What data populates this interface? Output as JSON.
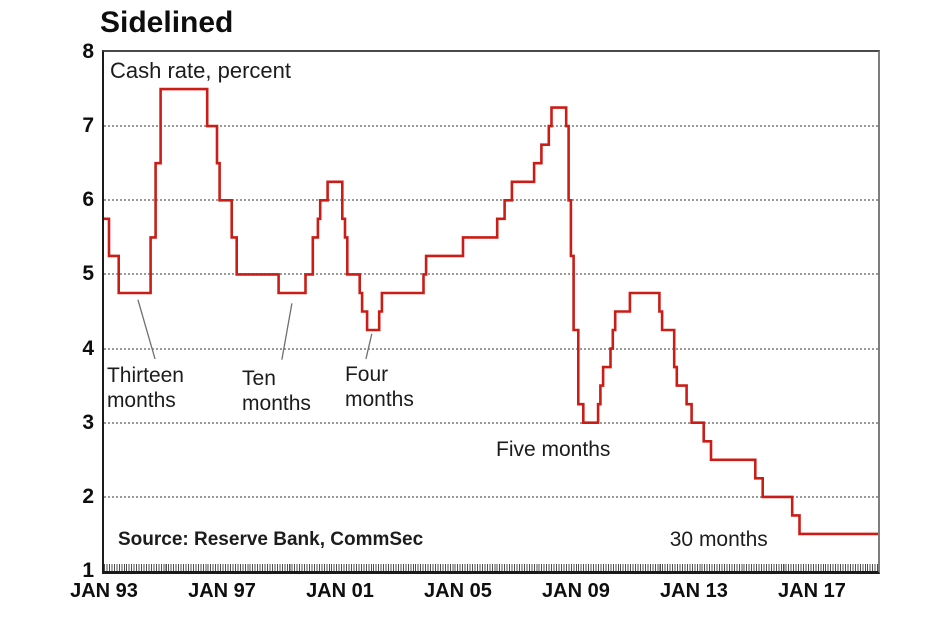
{
  "chart_data": {
    "type": "line",
    "subtype": "step",
    "title": "Sidelined",
    "series_label": "Cash rate, percent",
    "source": "Source: Reserve Bank, CommSec",
    "ylabel": "Cash rate (percent)",
    "xlabel": "",
    "y_range": [
      1,
      8
    ],
    "x_range_years": [
      1993.0,
      2019.24
    ],
    "grid": "horizontal-dotted",
    "legend_position": "none",
    "line_color": "#cb1d17",
    "grid_color": "#9a9a9a",
    "y_ticks": [
      8,
      7,
      6,
      5,
      4,
      3,
      2,
      1
    ],
    "y_gridlines": [
      7,
      6,
      5,
      4,
      3,
      2
    ],
    "x_ticks": [
      {
        "label": "JAN 93",
        "year": 1993
      },
      {
        "label": "JAN 97",
        "year": 1997
      },
      {
        "label": "JAN 01",
        "year": 2001
      },
      {
        "label": "JAN 05",
        "year": 2005
      },
      {
        "label": "JAN 09",
        "year": 2009
      },
      {
        "label": "JAN 13",
        "year": 2013
      },
      {
        "label": "JAN 17",
        "year": 2017
      }
    ],
    "points": [
      {
        "date": "Jan 93",
        "year": 1993.0,
        "rate": 5.75
      },
      {
        "date": "Mar 93",
        "year": 1993.17,
        "rate": 5.25
      },
      {
        "date": "Jul 93",
        "year": 1993.5,
        "rate": 4.75
      },
      {
        "date": "Aug 94",
        "year": 1994.58,
        "rate": 5.5
      },
      {
        "date": "Oct 94",
        "year": 1994.75,
        "rate": 6.5
      },
      {
        "date": "Dec 94",
        "year": 1994.92,
        "rate": 7.5
      },
      {
        "date": "Jul 96",
        "year": 1996.5,
        "rate": 7.0
      },
      {
        "date": "Nov 96",
        "year": 1996.83,
        "rate": 6.5
      },
      {
        "date": "Dec 96",
        "year": 1996.92,
        "rate": 6.0
      },
      {
        "date": "May 97",
        "year": 1997.33,
        "rate": 5.5
      },
      {
        "date": "Jul 97",
        "year": 1997.5,
        "rate": 5.0
      },
      {
        "date": "Dec 98",
        "year": 1998.92,
        "rate": 4.75
      },
      {
        "date": "Nov 99",
        "year": 1999.83,
        "rate": 5.0
      },
      {
        "date": "Feb 00",
        "year": 2000.08,
        "rate": 5.5
      },
      {
        "date": "Apr 00",
        "year": 2000.25,
        "rate": 5.75
      },
      {
        "date": "May 00",
        "year": 2000.33,
        "rate": 6.0
      },
      {
        "date": "Aug 00",
        "year": 2000.58,
        "rate": 6.25
      },
      {
        "date": "Feb 01",
        "year": 2001.08,
        "rate": 5.75
      },
      {
        "date": "Mar 01",
        "year": 2001.17,
        "rate": 5.5
      },
      {
        "date": "Apr 01",
        "year": 2001.25,
        "rate": 5.0
      },
      {
        "date": "Sep 01",
        "year": 2001.67,
        "rate": 4.75
      },
      {
        "date": "Oct 01",
        "year": 2001.75,
        "rate": 4.5
      },
      {
        "date": "Dec 01",
        "year": 2001.92,
        "rate": 4.25
      },
      {
        "date": "May 02",
        "year": 2002.33,
        "rate": 4.5
      },
      {
        "date": "Jun 02",
        "year": 2002.42,
        "rate": 4.75
      },
      {
        "date": "Nov 03",
        "year": 2003.83,
        "rate": 5.0
      },
      {
        "date": "Dec 03",
        "year": 2003.92,
        "rate": 5.25
      },
      {
        "date": "Mar 05",
        "year": 2005.17,
        "rate": 5.5
      },
      {
        "date": "May 06",
        "year": 2006.33,
        "rate": 5.75
      },
      {
        "date": "Aug 06",
        "year": 2006.58,
        "rate": 6.0
      },
      {
        "date": "Nov 06",
        "year": 2006.83,
        "rate": 6.25
      },
      {
        "date": "Aug 07",
        "year": 2007.58,
        "rate": 6.5
      },
      {
        "date": "Nov 07",
        "year": 2007.83,
        "rate": 6.75
      },
      {
        "date": "Feb 08",
        "year": 2008.08,
        "rate": 7.0
      },
      {
        "date": "Mar 08",
        "year": 2008.17,
        "rate": 7.25
      },
      {
        "date": "Sep 08",
        "year": 2008.67,
        "rate": 7.0
      },
      {
        "date": "Oct 08",
        "year": 2008.75,
        "rate": 6.0
      },
      {
        "date": "Nov 08",
        "year": 2008.83,
        "rate": 5.25
      },
      {
        "date": "Dec 08",
        "year": 2008.92,
        "rate": 4.25
      },
      {
        "date": "Feb 09",
        "year": 2009.08,
        "rate": 3.25
      },
      {
        "date": "Apr 09",
        "year": 2009.25,
        "rate": 3.0
      },
      {
        "date": "Oct 09",
        "year": 2009.75,
        "rate": 3.25
      },
      {
        "date": "Nov 09",
        "year": 2009.83,
        "rate": 3.5
      },
      {
        "date": "Dec 09",
        "year": 2009.92,
        "rate": 3.75
      },
      {
        "date": "Mar 10",
        "year": 2010.17,
        "rate": 4.0
      },
      {
        "date": "Apr 10",
        "year": 2010.25,
        "rate": 4.25
      },
      {
        "date": "May 10",
        "year": 2010.33,
        "rate": 4.5
      },
      {
        "date": "Nov 10",
        "year": 2010.83,
        "rate": 4.75
      },
      {
        "date": "Nov 11",
        "year": 2011.83,
        "rate": 4.5
      },
      {
        "date": "Dec 11",
        "year": 2011.92,
        "rate": 4.25
      },
      {
        "date": "May 12",
        "year": 2012.33,
        "rate": 3.75
      },
      {
        "date": "Jun 12",
        "year": 2012.42,
        "rate": 3.5
      },
      {
        "date": "Oct 12",
        "year": 2012.75,
        "rate": 3.25
      },
      {
        "date": "Dec 12",
        "year": 2012.92,
        "rate": 3.0
      },
      {
        "date": "May 13",
        "year": 2013.33,
        "rate": 2.75
      },
      {
        "date": "Aug 13",
        "year": 2013.58,
        "rate": 2.5
      },
      {
        "date": "Feb 15",
        "year": 2015.08,
        "rate": 2.25
      },
      {
        "date": "May 15",
        "year": 2015.33,
        "rate": 2.0
      },
      {
        "date": "May 16",
        "year": 2016.33,
        "rate": 1.75
      },
      {
        "date": "Aug 16",
        "year": 2016.58,
        "rate": 1.5
      },
      {
        "date": "end",
        "year": 2019.24,
        "rate": 1.5
      }
    ],
    "annotations": [
      {
        "id": "thirteen-months",
        "text": "Thirteen\nmonths",
        "anchor_year": 1993.1,
        "anchor_rate": 3.8,
        "leader": {
          "x1_year": 1994.15,
          "y1_rate": 4.66,
          "x2_year": 1994.73,
          "y2_rate": 3.86
        }
      },
      {
        "id": "ten-months",
        "text": "Ten\nmonths",
        "anchor_year": 1997.68,
        "anchor_rate": 3.76,
        "leader": {
          "x1_year": 1999.37,
          "y1_rate": 4.61,
          "x2_year": 1999.03,
          "y2_rate": 3.85
        }
      },
      {
        "id": "four-months",
        "text": "Four\nmonths",
        "anchor_year": 2001.17,
        "anchor_rate": 3.82,
        "leader": {
          "x1_year": 2002.08,
          "y1_rate": 4.2,
          "x2_year": 2001.88,
          "y2_rate": 3.86
        }
      },
      {
        "id": "five-months",
        "text": "Five months",
        "anchor_year": 2006.29,
        "anchor_rate": 2.81,
        "leader": null
      },
      {
        "id": "thirty-months",
        "text": "30 months",
        "anchor_year": 2012.18,
        "anchor_rate": 1.6,
        "leader": null
      }
    ],
    "annotation_leader_color": "#6f6f6f"
  }
}
